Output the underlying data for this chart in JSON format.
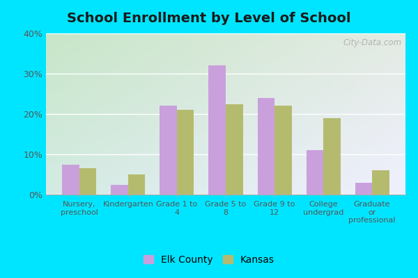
{
  "title": "School Enrollment by Level of School",
  "categories": [
    "Nursery,\npreschool",
    "Kindergarten",
    "Grade 1 to\n4",
    "Grade 5 to\n8",
    "Grade 9 to\n12",
    "College\nundergrad",
    "Graduate\nor\nprofessional"
  ],
  "elk_county": [
    7.5,
    2.5,
    22.0,
    32.0,
    24.0,
    11.0,
    3.0
  ],
  "kansas": [
    6.5,
    5.0,
    21.0,
    22.5,
    22.0,
    19.0,
    6.0
  ],
  "elk_color": "#c9a0dc",
  "kansas_color": "#b5bb6e",
  "bg_color_bottom": "#c8e6c9",
  "bg_color_top": "#f5f5ff",
  "outer_bg": "#00e5ff",
  "ylim": [
    0,
    40
  ],
  "yticks": [
    0,
    10,
    20,
    30,
    40
  ],
  "legend_labels": [
    "Elk County",
    "Kansas"
  ],
  "watermark": "City-Data.com",
  "title_fontsize": 14,
  "tick_fontsize": 8,
  "legend_fontsize": 10
}
